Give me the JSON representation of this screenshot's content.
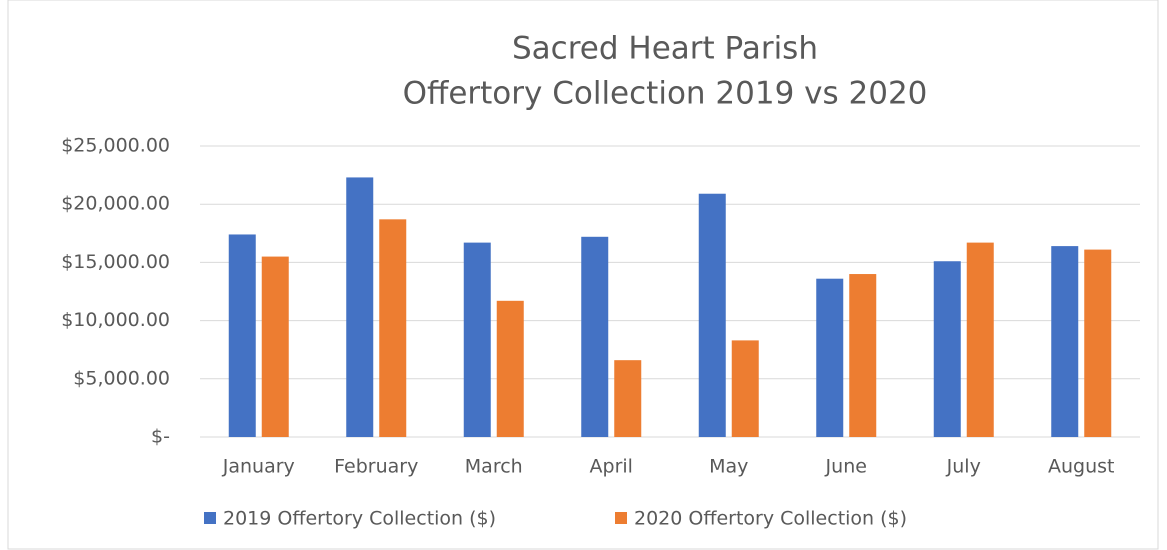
{
  "chart_data": {
    "type": "bar",
    "title": "Sacred Heart Parish",
    "subtitle": "Offertory Collection 2019 vs 2020",
    "categories": [
      "January",
      "February",
      "March",
      "April",
      "May",
      "June",
      "July",
      "August"
    ],
    "series": [
      {
        "name": "2019 Offertory Collection ($)",
        "color": "#4472c4",
        "values": [
          17400,
          22300,
          16700,
          17200,
          20900,
          13600,
          15100,
          16400
        ]
      },
      {
        "name": "2020 Offertory Collection ($)",
        "color": "#ed7d31",
        "values": [
          15500,
          18700,
          11700,
          6600,
          8300,
          14000,
          16700,
          16100
        ]
      }
    ],
    "ylim": [
      0,
      25000
    ],
    "yticks": [
      {
        "value": 0,
        "label": "$-"
      },
      {
        "value": 5000,
        "label": "$5,000.00"
      },
      {
        "value": 10000,
        "label": "$10,000.00"
      },
      {
        "value": 15000,
        "label": "$15,000.00"
      },
      {
        "value": 20000,
        "label": "$20,000.00"
      },
      {
        "value": 25000,
        "label": "$25,000.00"
      }
    ],
    "grid": true,
    "legend": "bottom"
  }
}
